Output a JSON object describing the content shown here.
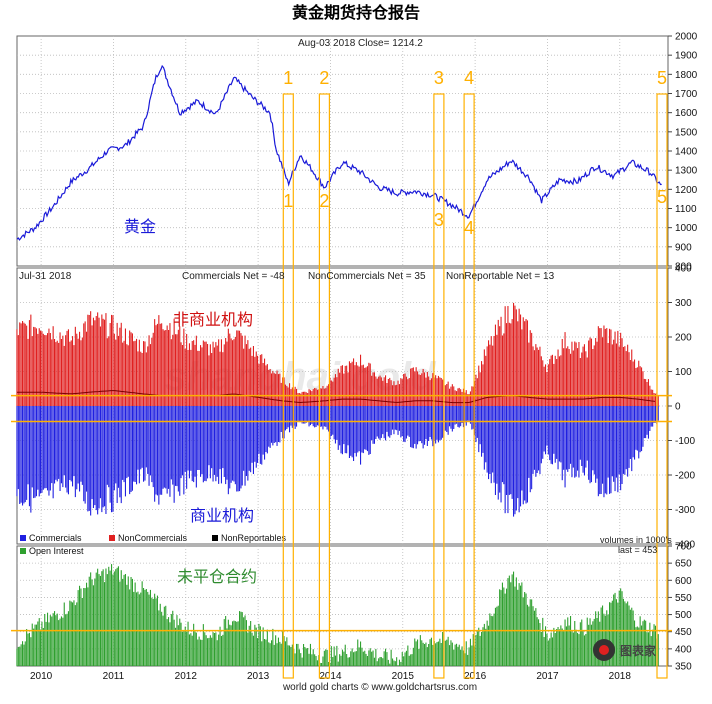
{
  "title": "黄金期货持仓报告",
  "footer": "world gold charts © www.goldchartsrus.com",
  "watermark": "shanghai gold",
  "logo_text": "图表家",
  "colors": {
    "gold_line": "#1a1ad8",
    "noncommercial": "#e02020",
    "commercial": "#2020e0",
    "nonreportable": "#000000",
    "open_interest": "#2fa02f",
    "highlight": "#ffb000",
    "label_red": "#d01010",
    "label_blue": "#1a1ad8",
    "label_green": "#2e8b2e"
  },
  "x_axis": {
    "ticks": [
      "2010",
      "2011",
      "2012",
      "2013",
      "2014",
      "2015",
      "2016",
      "2017",
      "2018"
    ]
  },
  "chart_data": [
    {
      "type": "line",
      "name": "price",
      "header": "Aug-03  2018   Close= 1214.2",
      "label": "黄金",
      "ylim": [
        800,
        2000
      ],
      "yticks": [
        "800",
        "900",
        "1000",
        "1100",
        "1200",
        "1300",
        "1400",
        "1500",
        "1600",
        "1700",
        "1800",
        "1900",
        "2000"
      ],
      "x": [
        "2009-09",
        "2009-12",
        "2010-03",
        "2010-06",
        "2010-09",
        "2010-12",
        "2011-03",
        "2011-06",
        "2011-08",
        "2011-09",
        "2011-12",
        "2012-03",
        "2012-06",
        "2012-09",
        "2012-12",
        "2013-03",
        "2013-04",
        "2013-06",
        "2013-08",
        "2013-10",
        "2013-12",
        "2014-03",
        "2014-06",
        "2014-09",
        "2014-12",
        "2015-03",
        "2015-06",
        "2015-09",
        "2015-12",
        "2016-03",
        "2016-07",
        "2016-10",
        "2016-12",
        "2017-03",
        "2017-06",
        "2017-09",
        "2017-12",
        "2018-03",
        "2018-06",
        "2018-08"
      ],
      "y": [
        940,
        1000,
        1110,
        1240,
        1310,
        1400,
        1430,
        1530,
        1780,
        1850,
        1600,
        1660,
        1590,
        1780,
        1680,
        1600,
        1410,
        1230,
        1380,
        1300,
        1210,
        1340,
        1290,
        1210,
        1180,
        1190,
        1170,
        1120,
        1060,
        1250,
        1350,
        1260,
        1140,
        1250,
        1240,
        1320,
        1270,
        1340,
        1290,
        1214
      ]
    },
    {
      "type": "bar",
      "name": "positions",
      "header_date": "Jul-31  2018",
      "net_labels": [
        "Commercials Net = -48",
        "NonCommercials Net = 35",
        "NonReportable Net = 13"
      ],
      "labels": [
        "非商业机构",
        "商业机构"
      ],
      "legend": [
        "Commercials",
        "NonCommercials",
        "NonReportables"
      ],
      "unit_label": "volumes in 1000's",
      "ylim": [
        -400,
        400
      ],
      "yticks": [
        "-400",
        "-300",
        "-200",
        "-100",
        "0",
        "100",
        "200",
        "300",
        "400"
      ],
      "x": [
        "2009-09",
        "2010-01",
        "2010-06",
        "2010-09",
        "2011-01",
        "2011-06",
        "2011-09",
        "2012-01",
        "2012-06",
        "2012-09",
        "2013-01",
        "2013-05",
        "2013-08",
        "2013-12",
        "2014-03",
        "2014-06",
        "2014-09",
        "2014-12",
        "2015-03",
        "2015-06",
        "2015-09",
        "2015-12",
        "2016-03",
        "2016-07",
        "2016-10",
        "2017-01",
        "2017-04",
        "2017-07",
        "2017-10",
        "2018-01",
        "2018-04",
        "2018-07"
      ],
      "series": [
        {
          "name": "NonCommercials",
          "values": [
            230,
            250,
            200,
            260,
            240,
            180,
            270,
            200,
            170,
            230,
            150,
            80,
            40,
            60,
            110,
            140,
            90,
            70,
            110,
            90,
            60,
            40,
            170,
            300,
            220,
            120,
            200,
            160,
            230,
            200,
            130,
            35
          ]
        },
        {
          "name": "Commercials",
          "values": [
            -270,
            -290,
            -230,
            -300,
            -280,
            -210,
            -290,
            -230,
            -200,
            -260,
            -170,
            -90,
            -50,
            -70,
            -130,
            -160,
            -100,
            -80,
            -120,
            -110,
            -70,
            -50,
            -190,
            -320,
            -250,
            -140,
            -220,
            -180,
            -260,
            -230,
            -150,
            -48
          ]
        },
        {
          "name": "NonReportables",
          "values": [
            40,
            40,
            35,
            40,
            45,
            35,
            30,
            30,
            30,
            35,
            25,
            15,
            10,
            15,
            20,
            20,
            15,
            10,
            15,
            15,
            10,
            10,
            25,
            30,
            25,
            20,
            20,
            20,
            25,
            25,
            20,
            13
          ]
        }
      ]
    },
    {
      "type": "bar",
      "name": "open_interest",
      "legend": "Open Interest",
      "last_label": "last = 453",
      "label": "未平仓合约",
      "ylim": [
        350,
        700
      ],
      "yticks": [
        "350",
        "400",
        "450",
        "500",
        "550",
        "600",
        "650",
        "700"
      ],
      "x": [
        "2009-09",
        "2010-01",
        "2010-06",
        "2010-09",
        "2011-01",
        "2011-06",
        "2011-09",
        "2012-01",
        "2012-06",
        "2012-09",
        "2013-01",
        "2013-05",
        "2013-08",
        "2013-12",
        "2014-03",
        "2014-06",
        "2014-09",
        "2014-12",
        "2015-03",
        "2015-06",
        "2015-09",
        "2015-12",
        "2016-03",
        "2016-07",
        "2016-10",
        "2017-01",
        "2017-04",
        "2017-07",
        "2017-10",
        "2018-01",
        "2018-04",
        "2018-07"
      ],
      "values": [
        420,
        470,
        530,
        600,
        630,
        570,
        520,
        460,
        440,
        500,
        450,
        430,
        400,
        380,
        390,
        410,
        380,
        370,
        410,
        430,
        420,
        400,
        480,
        620,
        540,
        440,
        480,
        460,
        500,
        560,
        480,
        453
      ]
    }
  ],
  "reference_lines": {
    "positions": [
      30,
      -45
    ],
    "open_interest": 453
  },
  "highlights": {
    "labels_top": [
      "1",
      "2",
      "3",
      "4",
      "5"
    ],
    "labels_bottom": [
      "1",
      "2",
      "3",
      "4",
      "5"
    ],
    "dates": [
      "2013-06",
      "2013-12",
      "2015-07",
      "2015-12",
      "2018-08"
    ]
  }
}
